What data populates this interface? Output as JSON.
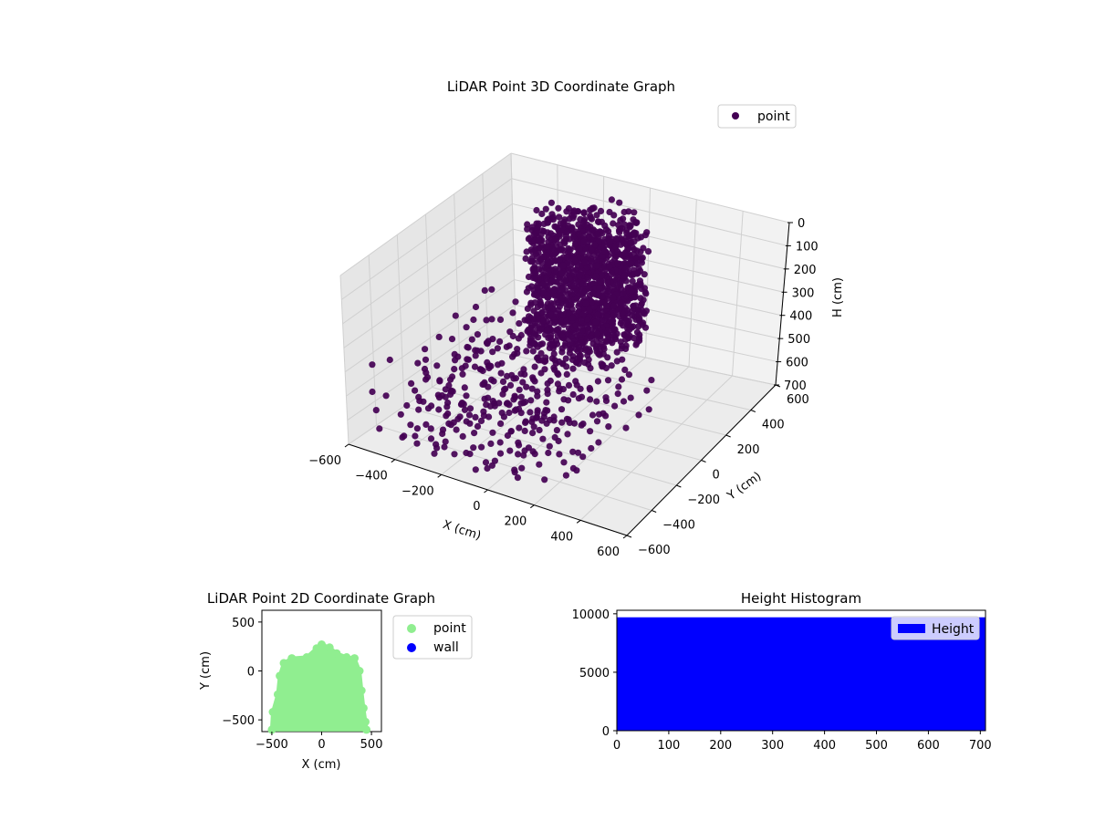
{
  "chart_data": [
    {
      "type": "scatter",
      "projection": "3d",
      "title": "LiDAR Point 3D Coordinate Graph",
      "xlabel": "X (cm)",
      "ylabel": "Y (cm)",
      "zlabel": "H (cm)",
      "xlim": [
        -600,
        600
      ],
      "ylim": [
        -600,
        600
      ],
      "zlim": [
        0,
        700
      ],
      "z_inverted": true,
      "x_ticks": [
        "−600",
        "−400",
        "−200",
        "0",
        "200",
        "400",
        "600"
      ],
      "y_ticks": [
        "−600",
        "−400",
        "−200",
        "0",
        "200",
        "400",
        "600"
      ],
      "z_ticks": [
        "0",
        "100",
        "200",
        "300",
        "400",
        "500",
        "600",
        "700"
      ],
      "grid": true,
      "legend_position": "top-right",
      "series": [
        {
          "name": "point",
          "color": "#440154",
          "description_of_cloud": "dense cylindrical cluster near x -300..200, y 100..500 plus sparse scattered points across the floor region",
          "points": [
            [
              -480,
              -150,
              520
            ],
            [
              -470,
              -60,
              600
            ],
            [
              -440,
              40,
              480
            ],
            [
              -410,
              -200,
              650
            ],
            [
              -400,
              120,
              420
            ],
            [
              -380,
              -300,
              560
            ],
            [
              -360,
              60,
              640
            ],
            [
              -340,
              -80,
              380
            ],
            [
              -320,
              200,
              500
            ],
            [
              -300,
              -250,
              610
            ],
            [
              -290,
              -20,
              450
            ],
            [
              -270,
              150,
              680
            ],
            [
              -250,
              -350,
              520
            ],
            [
              -230,
              80,
              360
            ],
            [
              -210,
              -150,
              600
            ],
            [
              -190,
              250,
              430
            ],
            [
              -170,
              -40,
              550
            ],
            [
              -150,
              -300,
              640
            ],
            [
              -130,
              120,
              470
            ],
            [
              -110,
              -200,
              580
            ],
            [
              -90,
              30,
              400
            ],
            [
              -70,
              -380,
              620
            ],
            [
              -50,
              180,
              520
            ],
            [
              -30,
              -100,
              660
            ],
            [
              -10,
              -250,
              480
            ],
            [
              10,
              60,
              560
            ],
            [
              30,
              -420,
              620
            ],
            [
              50,
              -150,
              440
            ],
            [
              70,
              -300,
              600
            ],
            [
              90,
              -50,
              500
            ],
            [
              110,
              -400,
              650
            ],
            [
              130,
              -200,
              560
            ],
            [
              150,
              -80,
              470
            ],
            [
              170,
              -350,
              610
            ],
            [
              190,
              -500,
              640
            ],
            [
              210,
              -250,
              520
            ],
            [
              230,
              -420,
              590
            ],
            [
              -420,
              -400,
              660
            ],
            [
              -350,
              -450,
              600
            ],
            [
              -280,
              -500,
              640
            ],
            [
              -200,
              -480,
              560
            ],
            [
              -120,
              -520,
              620
            ],
            [
              -60,
              -460,
              680
            ],
            [
              0,
              -540,
              600
            ],
            [
              60,
              -500,
              640
            ],
            [
              -460,
              180,
              560
            ],
            [
              -390,
              260,
              620
            ],
            [
              -320,
              320,
              480
            ],
            [
              -250,
              380,
              560
            ],
            [
              -180,
              300,
              640
            ]
          ],
          "cluster_center": [
            -80,
            280,
            250
          ],
          "cluster_radius": 230,
          "cluster_height_range": [
            20,
            500
          ]
        }
      ]
    },
    {
      "type": "scatter",
      "title": "LiDAR Point 2D Coordinate Graph",
      "xlabel": "X (cm)",
      "ylabel": "Y (cm)",
      "xlim": [
        -600,
        600
      ],
      "ylim": [
        -620,
        620
      ],
      "x_ticks": [
        "−500",
        "0",
        "500"
      ],
      "y_ticks": [
        "−500",
        "0",
        "500"
      ],
      "legend_position": "outside-right",
      "series": [
        {
          "name": "point",
          "color": "#90ee90",
          "region_outline": [
            [
              -500,
              -600
            ],
            [
              -490,
              -420
            ],
            [
              -440,
              -240
            ],
            [
              -420,
              -50
            ],
            [
              -380,
              80
            ],
            [
              -300,
              130
            ],
            [
              -150,
              140
            ],
            [
              -50,
              230
            ],
            [
              0,
              270
            ],
            [
              80,
              240
            ],
            [
              150,
              180
            ],
            [
              250,
              140
            ],
            [
              330,
              130
            ],
            [
              380,
              0
            ],
            [
              400,
              -200
            ],
            [
              420,
              -380
            ],
            [
              440,
              -520
            ],
            [
              450,
              -600
            ]
          ]
        },
        {
          "name": "wall",
          "color": "#0000ff",
          "points": []
        }
      ]
    },
    {
      "type": "bar",
      "title": "Height Histogram",
      "xlim": [
        0,
        710
      ],
      "ylim": [
        0,
        10300
      ],
      "x_ticks": [
        "0",
        "100",
        "200",
        "300",
        "400",
        "500",
        "600",
        "700"
      ],
      "y_ticks": [
        "0",
        "5000",
        "10000"
      ],
      "legend_position": "top-right",
      "series": [
        {
          "name": "Height",
          "color": "#0000ff",
          "bins": [
            [
              0,
              710,
              9700
            ]
          ]
        }
      ]
    }
  ]
}
